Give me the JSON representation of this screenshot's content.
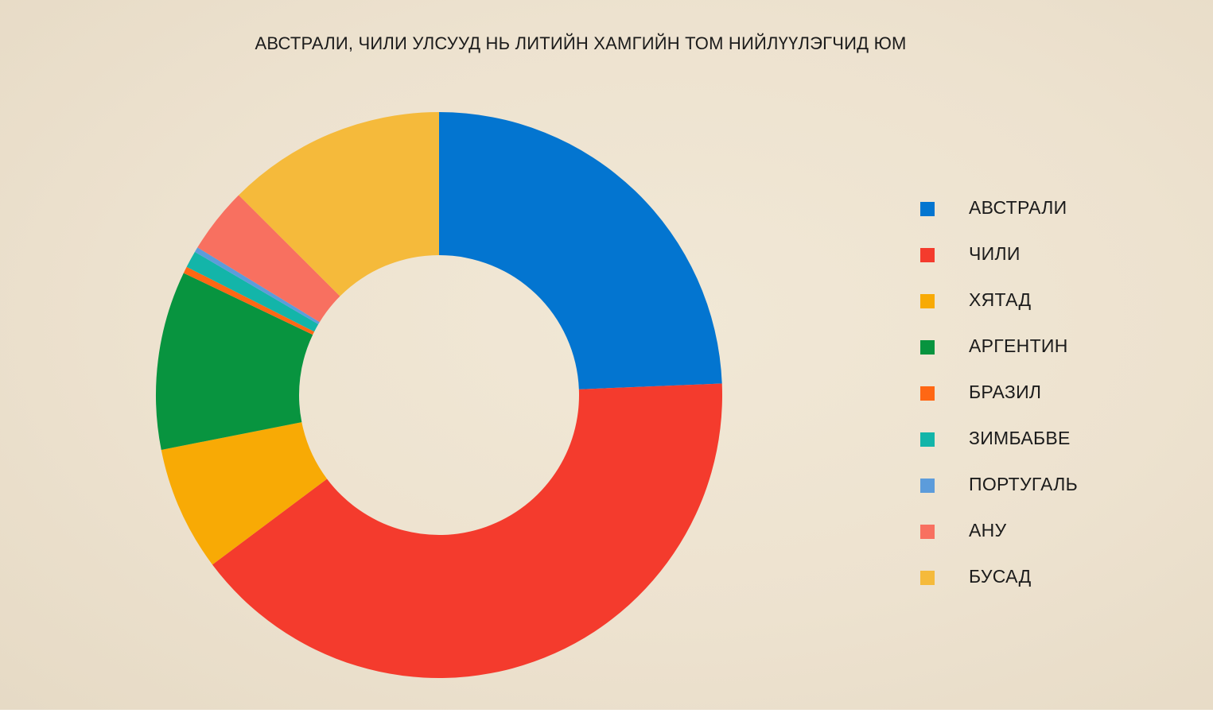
{
  "chart_data": {
    "type": "pie",
    "style": "donut",
    "title": "АВСТРАЛИ, ЧИЛИ УЛСУУД НЬ ЛИТИЙН ХАМГИЙН ТОМ НИЙЛҮҮЛЭГЧИД ЮМ",
    "legend_position": "right",
    "categories": [
      "АВСТРАЛИ",
      "ЧИЛИ",
      "ХЯТАД",
      "АРГЕНТИН",
      "БРАЗИЛ",
      "ЗИМБАБВЕ",
      "ПОРТУГАЛЬ",
      "АНУ",
      "БУСАД"
    ],
    "values": [
      25.3,
      42.0,
      7.4,
      10.6,
      0.4,
      1.0,
      0.3,
      3.9,
      13.0
    ],
    "colors": [
      "#0375d0",
      "#f43b2d",
      "#f8aa05",
      "#08943f",
      "#ff6714",
      "#13b5a9",
      "#5c9cdb",
      "#f87060",
      "#f5ba3b"
    ]
  }
}
